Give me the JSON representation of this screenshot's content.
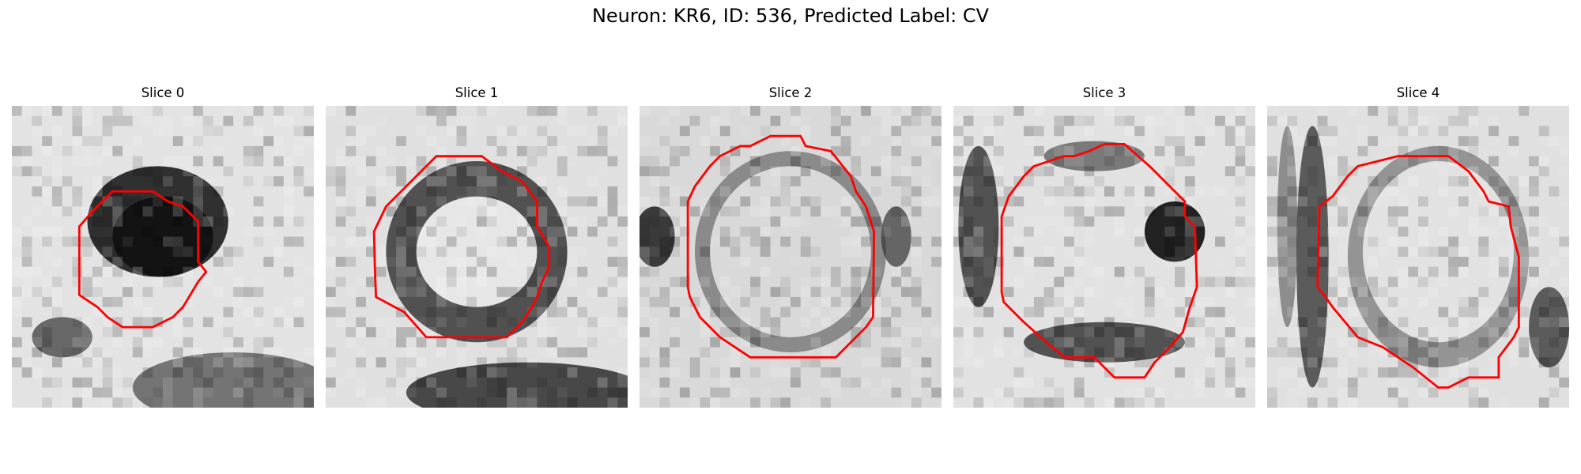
{
  "figure": {
    "title": "Neuron: KR6, ID: 536, Predicted Label: CV"
  },
  "panels": [
    {
      "title": "Slice 0"
    },
    {
      "title": "Slice 1"
    },
    {
      "title": "Slice 2"
    },
    {
      "title": "Slice 3"
    },
    {
      "title": "Slice 4"
    }
  ],
  "colors": {
    "contour": "#ff0000",
    "background": "#ffffff"
  }
}
